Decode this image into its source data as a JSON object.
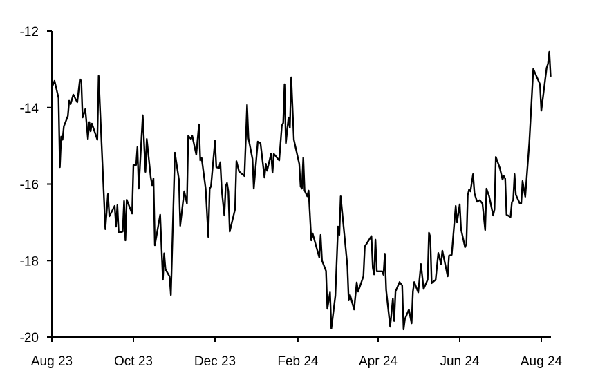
{
  "chart_data": {
    "type": "line",
    "title": "",
    "xlabel": "",
    "ylabel": "",
    "ylim": [
      -20,
      -12
    ],
    "xlim": [
      "2023-08-01",
      "2024-08-08"
    ],
    "grid": false,
    "line_color": "#000000",
    "y_ticks": [
      {
        "value": -12,
        "label": "-12"
      },
      {
        "value": -14,
        "label": "-14"
      },
      {
        "value": -16,
        "label": "-16"
      },
      {
        "value": -18,
        "label": "-18"
      },
      {
        "value": -20,
        "label": "-20"
      }
    ],
    "x_ticks": [
      {
        "date": "2023-08-01",
        "label": "Aug 23"
      },
      {
        "date": "2023-10-01",
        "label": "Oct 23"
      },
      {
        "date": "2023-12-01",
        "label": "Dec 23"
      },
      {
        "date": "2024-02-01",
        "label": "Feb 24"
      },
      {
        "date": "2024-04-01",
        "label": "Apr 24"
      },
      {
        "date": "2024-06-01",
        "label": "Jun 24"
      },
      {
        "date": "2024-08-01",
        "label": "Aug 24"
      }
    ],
    "series": [
      {
        "points": [
          [
            "2023-08-01",
            -13.48
          ],
          [
            "2023-08-03",
            -13.3
          ],
          [
            "2023-08-06",
            -13.75
          ],
          [
            "2023-08-07",
            -15.56
          ],
          [
            "2023-08-08",
            -14.76
          ],
          [
            "2023-08-09",
            -14.84
          ],
          [
            "2023-08-10",
            -14.49
          ],
          [
            "2023-08-13",
            -14.22
          ],
          [
            "2023-08-14",
            -13.82
          ],
          [
            "2023-08-15",
            -13.91
          ],
          [
            "2023-08-17",
            -13.66
          ],
          [
            "2023-08-20",
            -13.86
          ],
          [
            "2023-08-22",
            -13.26
          ],
          [
            "2023-08-23",
            -13.3
          ],
          [
            "2023-08-24",
            -14.26
          ],
          [
            "2023-08-26",
            -14.04
          ],
          [
            "2023-08-28",
            -14.82
          ],
          [
            "2023-08-29",
            -14.38
          ],
          [
            "2023-08-30",
            -14.62
          ],
          [
            "2023-08-31",
            -14.42
          ],
          [
            "2023-09-04",
            -14.84
          ],
          [
            "2023-09-05",
            -13.17
          ],
          [
            "2023-09-07",
            -14.8
          ],
          [
            "2023-09-10",
            -17.18
          ],
          [
            "2023-09-12",
            -16.26
          ],
          [
            "2023-09-13",
            -16.84
          ],
          [
            "2023-09-17",
            -16.57
          ],
          [
            "2023-09-18",
            -17.11
          ],
          [
            "2023-09-19",
            -16.55
          ],
          [
            "2023-09-20",
            -17.27
          ],
          [
            "2023-09-23",
            -17.24
          ],
          [
            "2023-09-24",
            -16.44
          ],
          [
            "2023-09-25",
            -17.47
          ],
          [
            "2023-09-26",
            -16.41
          ],
          [
            "2023-09-30",
            -16.77
          ],
          [
            "2023-10-01",
            -15.5
          ],
          [
            "2023-10-03",
            -15.5
          ],
          [
            "2023-10-04",
            -15.03
          ],
          [
            "2023-10-05",
            -16.12
          ],
          [
            "2023-10-08",
            -14.2
          ],
          [
            "2023-10-10",
            -15.68
          ],
          [
            "2023-10-11",
            -14.82
          ],
          [
            "2023-10-14",
            -15.83
          ],
          [
            "2023-10-15",
            -16.03
          ],
          [
            "2023-10-16",
            -15.85
          ],
          [
            "2023-10-17",
            -17.6
          ],
          [
            "2023-10-21",
            -16.8
          ],
          [
            "2023-10-23",
            -18.5
          ],
          [
            "2023-10-24",
            -17.81
          ],
          [
            "2023-10-25",
            -18.23
          ],
          [
            "2023-10-28",
            -18.41
          ],
          [
            "2023-10-29",
            -18.9
          ],
          [
            "2023-11-01",
            -15.18
          ],
          [
            "2023-11-04",
            -15.88
          ],
          [
            "2023-11-05",
            -17.09
          ],
          [
            "2023-11-08",
            -16.19
          ],
          [
            "2023-11-10",
            -16.51
          ],
          [
            "2023-11-11",
            -14.74
          ],
          [
            "2023-11-13",
            -14.82
          ],
          [
            "2023-11-14",
            -14.74
          ],
          [
            "2023-11-17",
            -15.23
          ],
          [
            "2023-11-19",
            -14.44
          ],
          [
            "2023-11-20",
            -15.38
          ],
          [
            "2023-11-21",
            -15.32
          ],
          [
            "2023-11-24",
            -16.12
          ],
          [
            "2023-11-26",
            -17.38
          ],
          [
            "2023-11-27",
            -16.12
          ],
          [
            "2023-11-28",
            -16.06
          ],
          [
            "2023-12-01",
            -14.87
          ],
          [
            "2023-12-02",
            -15.56
          ],
          [
            "2023-12-04",
            -15.58
          ],
          [
            "2023-12-05",
            -15.43
          ],
          [
            "2023-12-06",
            -16.15
          ],
          [
            "2023-12-08",
            -16.82
          ],
          [
            "2023-12-09",
            -16.05
          ],
          [
            "2023-12-10",
            -15.97
          ],
          [
            "2023-12-11",
            -16.19
          ],
          [
            "2023-12-12",
            -17.24
          ],
          [
            "2023-12-16",
            -16.66
          ],
          [
            "2023-12-17",
            -15.4
          ],
          [
            "2023-12-19",
            -15.67
          ],
          [
            "2023-12-23",
            -15.79
          ],
          [
            "2023-12-25",
            -13.93
          ],
          [
            "2023-12-26",
            -14.8
          ],
          [
            "2023-12-29",
            -15.34
          ],
          [
            "2023-12-30",
            -16.12
          ],
          [
            "2024-01-02",
            -14.89
          ],
          [
            "2024-01-04",
            -14.93
          ],
          [
            "2024-01-07",
            -15.83
          ],
          [
            "2024-01-08",
            -15.47
          ],
          [
            "2024-01-09",
            -15.65
          ],
          [
            "2024-01-12",
            -15.2
          ],
          [
            "2024-01-13",
            -15.7
          ],
          [
            "2024-01-14",
            -15.21
          ],
          [
            "2024-01-18",
            -15.38
          ],
          [
            "2024-01-20",
            -14.47
          ],
          [
            "2024-01-21",
            -14.4
          ],
          [
            "2024-01-22",
            -13.39
          ],
          [
            "2024-01-23",
            -14.93
          ],
          [
            "2024-01-25",
            -14.26
          ],
          [
            "2024-01-26",
            -14.53
          ],
          [
            "2024-01-27",
            -13.21
          ],
          [
            "2024-01-29",
            -14.84
          ],
          [
            "2024-02-02",
            -15.47
          ],
          [
            "2024-02-03",
            -16.06
          ],
          [
            "2024-02-04",
            -16.12
          ],
          [
            "2024-02-05",
            -15.31
          ],
          [
            "2024-02-06",
            -16.17
          ],
          [
            "2024-02-08",
            -16.32
          ],
          [
            "2024-02-09",
            -16.17
          ],
          [
            "2024-02-11",
            -17.47
          ],
          [
            "2024-02-12",
            -17.29
          ],
          [
            "2024-02-17",
            -17.92
          ],
          [
            "2024-02-18",
            -17.33
          ],
          [
            "2024-02-19",
            -18.0
          ],
          [
            "2024-02-22",
            -18.27
          ],
          [
            "2024-02-23",
            -19.26
          ],
          [
            "2024-02-25",
            -18.83
          ],
          [
            "2024-02-26",
            -19.78
          ],
          [
            "2024-02-29",
            -18.92
          ],
          [
            "2024-03-02",
            -17.11
          ],
          [
            "2024-03-03",
            -17.33
          ],
          [
            "2024-03-04",
            -16.32
          ],
          [
            "2024-03-09",
            -18.14
          ],
          [
            "2024-03-10",
            -19.04
          ],
          [
            "2024-03-11",
            -18.9
          ],
          [
            "2024-03-14",
            -19.28
          ],
          [
            "2024-03-16",
            -18.57
          ],
          [
            "2024-03-17",
            -18.81
          ],
          [
            "2024-03-21",
            -18.41
          ],
          [
            "2024-03-22",
            -17.63
          ],
          [
            "2024-03-27",
            -17.36
          ],
          [
            "2024-03-28",
            -18.19
          ],
          [
            "2024-03-29",
            -18.36
          ],
          [
            "2024-03-30",
            -17.45
          ],
          [
            "2024-03-31",
            -18.28
          ],
          [
            "2024-04-04",
            -18.28
          ],
          [
            "2024-04-05",
            -18.37
          ],
          [
            "2024-04-06",
            -17.82
          ],
          [
            "2024-04-07",
            -18.77
          ],
          [
            "2024-04-10",
            -19.73
          ],
          [
            "2024-04-12",
            -18.99
          ],
          [
            "2024-04-13",
            -19.58
          ],
          [
            "2024-04-14",
            -18.81
          ],
          [
            "2024-04-17",
            -18.56
          ],
          [
            "2024-04-19",
            -18.65
          ],
          [
            "2024-04-20",
            -19.8
          ],
          [
            "2024-04-21",
            -19.53
          ],
          [
            "2024-04-24",
            -19.28
          ],
          [
            "2024-04-26",
            -19.64
          ],
          [
            "2024-04-27",
            -18.81
          ],
          [
            "2024-04-28",
            -18.56
          ],
          [
            "2024-05-01",
            -18.83
          ],
          [
            "2024-05-03",
            -18.09
          ],
          [
            "2024-05-05",
            -18.74
          ],
          [
            "2024-05-08",
            -18.5
          ],
          [
            "2024-05-09",
            -17.27
          ],
          [
            "2024-05-10",
            -17.38
          ],
          [
            "2024-05-11",
            -18.59
          ],
          [
            "2024-05-14",
            -18.5
          ],
          [
            "2024-05-16",
            -17.8
          ],
          [
            "2024-05-18",
            -18.09
          ],
          [
            "2024-05-19",
            -17.74
          ],
          [
            "2024-05-23",
            -18.41
          ],
          [
            "2024-05-24",
            -17.87
          ],
          [
            "2024-05-26",
            -17.85
          ],
          [
            "2024-05-29",
            -16.57
          ],
          [
            "2024-05-30",
            -17.0
          ],
          [
            "2024-06-01",
            -16.53
          ],
          [
            "2024-06-02",
            -17.18
          ],
          [
            "2024-06-05",
            -17.65
          ],
          [
            "2024-06-06",
            -17.56
          ],
          [
            "2024-06-07",
            -16.3
          ],
          [
            "2024-06-08",
            -16.14
          ],
          [
            "2024-06-09",
            -16.19
          ],
          [
            "2024-06-11",
            -15.74
          ],
          [
            "2024-06-12",
            -16.24
          ],
          [
            "2024-06-14",
            -16.46
          ],
          [
            "2024-06-16",
            -16.42
          ],
          [
            "2024-06-18",
            -16.51
          ],
          [
            "2024-06-20",
            -17.2
          ],
          [
            "2024-06-21",
            -16.12
          ],
          [
            "2024-06-23",
            -16.32
          ],
          [
            "2024-06-26",
            -16.82
          ],
          [
            "2024-06-27",
            -16.66
          ],
          [
            "2024-06-28",
            -15.29
          ],
          [
            "2024-07-01",
            -15.58
          ],
          [
            "2024-07-03",
            -15.88
          ],
          [
            "2024-07-04",
            -15.79
          ],
          [
            "2024-07-05",
            -15.86
          ],
          [
            "2024-07-06",
            -16.8
          ],
          [
            "2024-07-09",
            -16.86
          ],
          [
            "2024-07-10",
            -16.48
          ],
          [
            "2024-07-11",
            -16.41
          ],
          [
            "2024-07-12",
            -15.74
          ],
          [
            "2024-07-13",
            -16.28
          ],
          [
            "2024-07-16",
            -16.51
          ],
          [
            "2024-07-17",
            -16.5
          ],
          [
            "2024-07-18",
            -15.92
          ],
          [
            "2024-07-20",
            -16.33
          ],
          [
            "2024-07-23",
            -14.93
          ],
          [
            "2024-07-26",
            -12.99
          ],
          [
            "2024-07-31",
            -13.39
          ],
          [
            "2024-08-01",
            -14.08
          ],
          [
            "2024-08-05",
            -12.96
          ],
          [
            "2024-08-06",
            -12.85
          ],
          [
            "2024-08-07",
            -12.54
          ],
          [
            "2024-08-08",
            -13.19
          ]
        ]
      }
    ]
  }
}
